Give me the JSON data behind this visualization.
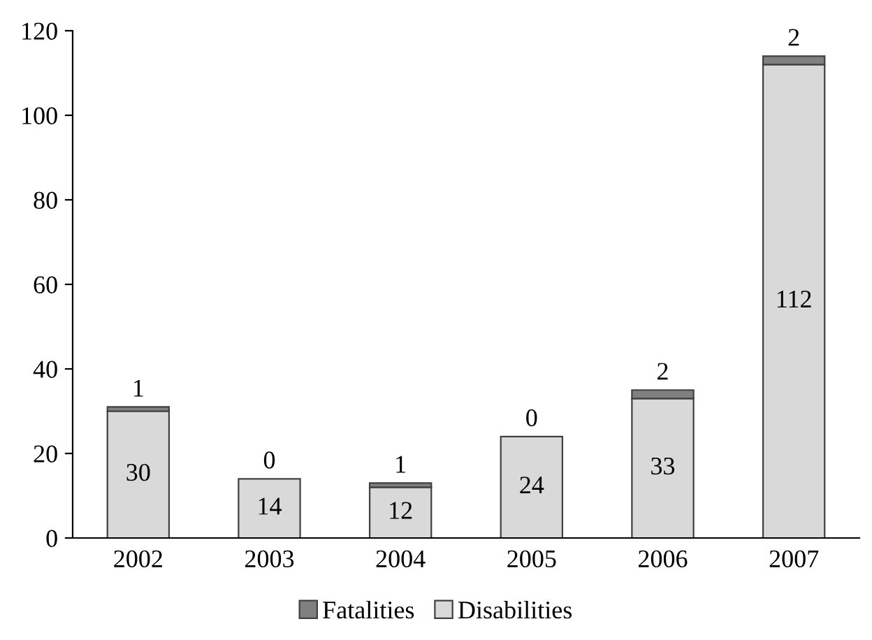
{
  "chart_data": {
    "type": "bar",
    "stacked": true,
    "categories": [
      "2002",
      "2003",
      "2004",
      "2005",
      "2006",
      "2007"
    ],
    "series": [
      {
        "name": "Disabilities",
        "color": "#d9d9d9",
        "values": [
          30,
          14,
          12,
          24,
          33,
          112
        ]
      },
      {
        "name": "Fatalities",
        "color": "#808080",
        "values": [
          1,
          0,
          1,
          0,
          2,
          2
        ]
      }
    ],
    "ylim": [
      0,
      120
    ],
    "yticks": [
      0,
      20,
      40,
      60,
      80,
      100,
      120
    ],
    "grid": false,
    "legend": "bottom",
    "data_labels": true
  }
}
